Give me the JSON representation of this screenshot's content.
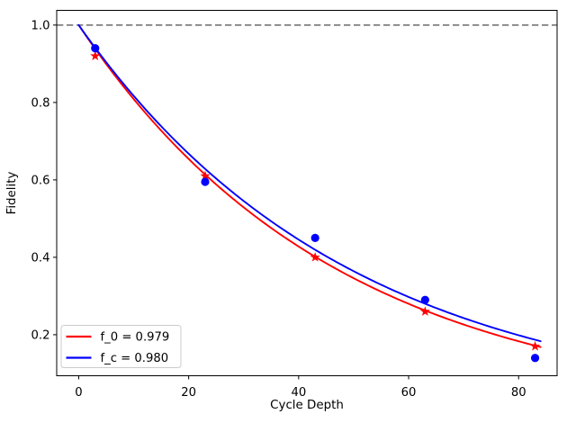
{
  "chart_data": {
    "type": "line",
    "title": "",
    "xlabel": "Cycle Depth",
    "ylabel": "Fidelity",
    "xlim": [
      -4.0,
      87.0
    ],
    "ylim": [
      0.094,
      1.038
    ],
    "xticks": [
      0,
      20,
      40,
      60,
      80
    ],
    "yticks": [
      1.0,
      0.8,
      0.6,
      0.4,
      0.2
    ],
    "grid": false,
    "reference_line": {
      "y": 1.0,
      "color": "#7f7f7f",
      "style": "dashed"
    },
    "series": [
      {
        "kind": "curve",
        "label": "f_0 = 0.979",
        "decay_per_cycle": 0.979,
        "x_start": 0,
        "x_end": 84,
        "color": "#ff0000"
      },
      {
        "kind": "curve",
        "label": "f_c = 0.980",
        "decay_per_cycle": 0.98,
        "x_start": 0,
        "x_end": 84,
        "color": "#0000ff"
      },
      {
        "kind": "scatter",
        "marker": "star",
        "color": "#ff0000",
        "x": [
          3,
          23,
          43,
          63,
          83
        ],
        "y": [
          0.92,
          0.61,
          0.4,
          0.26,
          0.17
        ]
      },
      {
        "kind": "scatter",
        "marker": "circle",
        "color": "#0000ff",
        "x": [
          3,
          23,
          43,
          63,
          83
        ],
        "y": [
          0.94,
          0.595,
          0.45,
          0.29,
          0.14
        ]
      }
    ],
    "legend": {
      "position": "lower-left",
      "entries": [
        {
          "label": "f_0 = 0.979",
          "color": "#ff0000"
        },
        {
          "label": "f_c = 0.980",
          "color": "#0000ff"
        }
      ]
    }
  }
}
